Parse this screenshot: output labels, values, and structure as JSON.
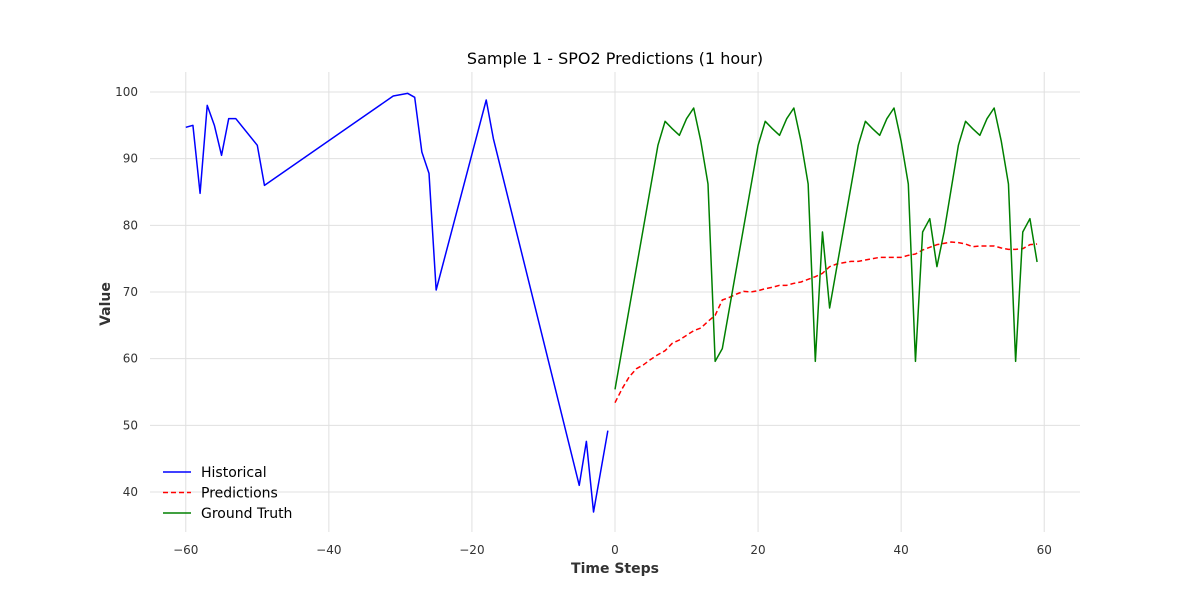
{
  "chart_data": {
    "type": "line",
    "title": "Sample 1 - SPO2 Predictions (1 hour)",
    "xlabel": "Time Steps",
    "ylabel": "Value",
    "xlim": [
      -65,
      65
    ],
    "ylim": [
      34,
      103
    ],
    "xticks": [
      -60,
      -40,
      -20,
      0,
      20,
      40,
      60
    ],
    "xtick_labels": [
      "−60",
      "−40",
      "−20",
      "0",
      "20",
      "40",
      "60"
    ],
    "yticks": [
      40,
      50,
      60,
      70,
      80,
      90,
      100
    ],
    "ytick_labels": [
      "40",
      "50",
      "60",
      "70",
      "80",
      "90",
      "100"
    ],
    "grid": true,
    "legend_position": "lower-left",
    "series": [
      {
        "name": "Historical",
        "color": "#0000ff",
        "style": "solid",
        "x": [
          -60,
          -59,
          -58,
          -57,
          -56,
          -55,
          -54,
          -53,
          -50,
          -49,
          -31,
          -29,
          -28,
          -27,
          -26,
          -25,
          -18,
          -17,
          -5,
          -4,
          -3,
          -1
        ],
        "y": [
          94.7,
          95.0,
          84.8,
          98.0,
          95.0,
          90.5,
          96.0,
          96.0,
          92.0,
          86.0,
          99.4,
          99.8,
          99.2,
          91.0,
          87.8,
          70.3,
          98.8,
          93.0,
          41.0,
          47.6,
          37.0,
          49.2
        ]
      },
      {
        "name": "Predictions",
        "color": "#ff0000",
        "style": "dashed",
        "x": [
          0,
          1,
          2,
          3,
          4,
          5,
          6,
          7,
          8,
          9,
          10,
          11,
          12,
          13,
          14,
          15,
          16,
          17,
          18,
          19,
          20,
          21,
          22,
          23,
          24,
          25,
          26,
          27,
          28,
          29,
          30,
          31,
          32,
          33,
          34,
          35,
          36,
          37,
          38,
          39,
          40,
          41,
          42,
          43,
          44,
          45,
          46,
          47,
          48,
          49,
          50,
          51,
          52,
          53,
          54,
          55,
          56,
          57,
          58,
          59
        ],
        "y": [
          53.4,
          55.5,
          57.3,
          58.5,
          59.1,
          59.9,
          60.6,
          61.2,
          62.3,
          62.8,
          63.5,
          64.2,
          64.6,
          65.6,
          66.5,
          68.8,
          69.2,
          69.7,
          70.1,
          70.0,
          70.2,
          70.5,
          70.7,
          71.0,
          71.0,
          71.3,
          71.5,
          71.9,
          72.3,
          72.8,
          73.8,
          74.2,
          74.4,
          74.6,
          74.6,
          74.8,
          75.0,
          75.2,
          75.2,
          75.2,
          75.2,
          75.5,
          75.7,
          76.3,
          76.7,
          77.1,
          77.3,
          77.5,
          77.4,
          77.2,
          76.8,
          76.9,
          76.9,
          76.9,
          76.6,
          76.4,
          76.4,
          76.5,
          77.1,
          77.2
        ]
      },
      {
        "name": "Ground Truth",
        "color": "#008000",
        "style": "solid",
        "x": [
          0,
          6,
          7,
          8,
          9,
          10,
          11,
          12,
          13,
          14,
          15,
          20,
          21,
          22,
          23,
          24,
          25,
          26,
          27,
          28,
          29,
          30,
          34,
          35,
          36,
          37,
          38,
          39,
          40,
          41,
          42,
          43,
          44,
          45,
          46,
          48,
          49,
          50,
          51,
          52,
          53,
          54,
          55,
          56,
          57,
          58,
          59
        ],
        "y": [
          55.4,
          92.0,
          95.6,
          94.5,
          93.5,
          96.0,
          97.6,
          92.6,
          86.2,
          59.6,
          61.5,
          92.0,
          95.6,
          94.5,
          93.5,
          96.0,
          97.6,
          92.6,
          86.2,
          59.6,
          79.0,
          67.6,
          92.0,
          95.6,
          94.5,
          93.5,
          96.0,
          97.6,
          92.6,
          86.2,
          59.6,
          79.0,
          81.0,
          73.8,
          79.0,
          92.0,
          95.6,
          94.5,
          93.5,
          96.0,
          97.6,
          92.6,
          86.2,
          59.6,
          79.0,
          81.0,
          74.5
        ]
      }
    ]
  }
}
